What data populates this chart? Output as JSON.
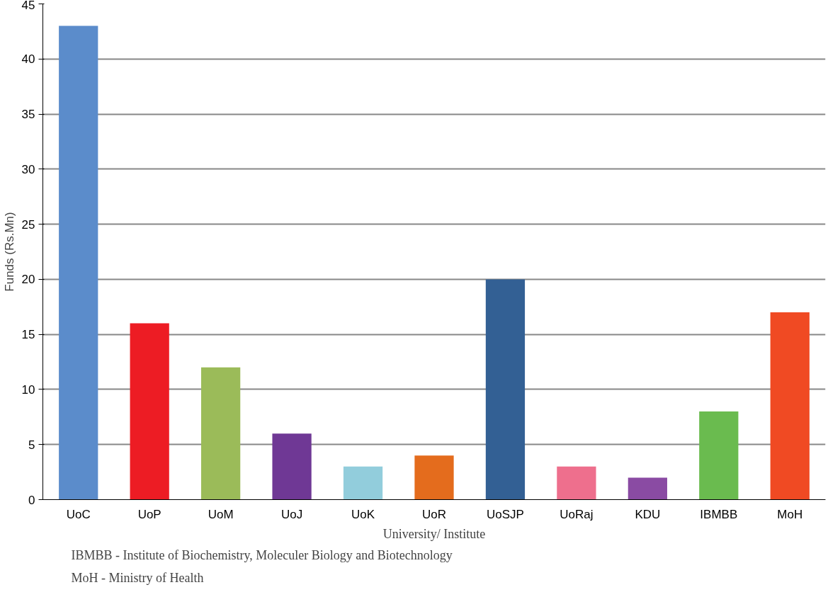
{
  "chart_data": {
    "type": "bar",
    "xlabel": "University/ Institute",
    "ylabel": "Funds (Rs.Mn)",
    "categories": [
      "UoC",
      "UoP",
      "UoM",
      "UoJ",
      "UoK",
      "UoR",
      "UoSJP",
      "UoRaj",
      "KDU",
      "IBMBB",
      "MoH"
    ],
    "values": [
      43,
      16,
      12,
      6,
      3,
      4,
      20,
      3,
      2,
      8,
      17
    ],
    "colors": [
      "#5b8ccb",
      "#ed1c24",
      "#9bbb59",
      "#6f3895",
      "#92cddc",
      "#e46c1d",
      "#336094",
      "#ee6f8d",
      "#8a4ba3",
      "#6abb4f",
      "#f04a23"
    ],
    "ylim": [
      0,
      45
    ],
    "yticks": [
      0,
      5,
      10,
      15,
      20,
      25,
      30,
      35,
      40,
      45
    ],
    "grid": "y",
    "annotations": [
      "IBMBB - Institute of Biochemistry, Moleculer Biology and Biotechnology",
      "MoH    - Ministry of Health"
    ]
  }
}
